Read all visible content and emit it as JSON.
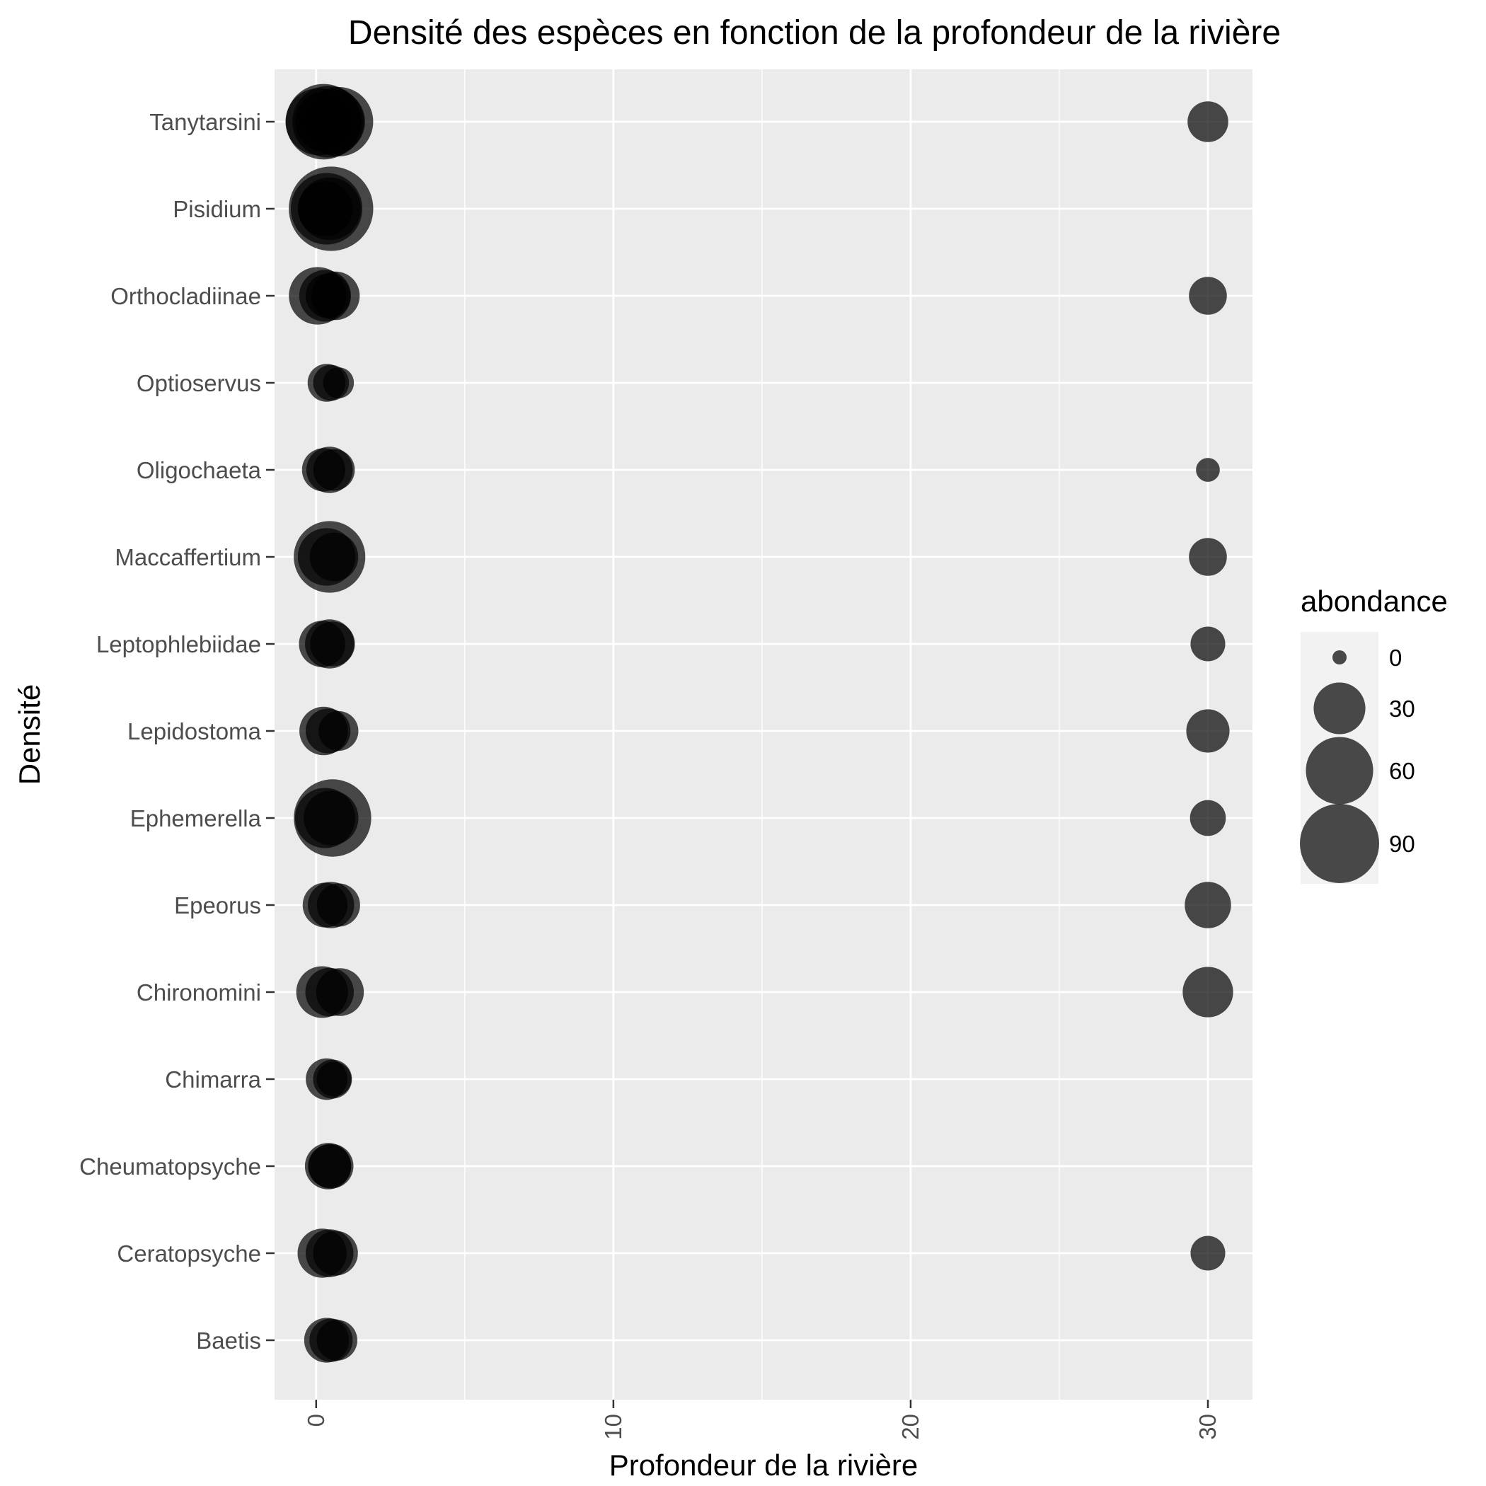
{
  "chart_data": {
    "type": "scatter",
    "title": "Densité des espèces en fonction de la profondeur de la rivière",
    "xlabel": "Profondeur de la rivière",
    "ylabel": "Densité",
    "xlim": [
      -1.4,
      31.5
    ],
    "x_ticks": [
      "0",
      "10",
      "20",
      "30"
    ],
    "x_tick_values": [
      0,
      10,
      20,
      30
    ],
    "categories": [
      "Tanytarsini",
      "Pisidium",
      "Orthocladiinae",
      "Optioservus",
      "Oligochaeta",
      "Maccaffertium",
      "Leptophlebiidae",
      "Lepidostoma",
      "Ephemerella",
      "Epeorus",
      "Chironomini",
      "Chimarra",
      "Cheumatopsyche",
      "Ceratopsyche",
      "Baetis"
    ],
    "grid": true,
    "panel_background": "#ebebeb",
    "point_color": "#000000",
    "point_opacity": 0.7,
    "size_legend": {
      "title": "abondance",
      "values": [
        0,
        30,
        60,
        90
      ],
      "labels": [
        "0",
        "30",
        "60",
        "90"
      ],
      "placement": "right"
    },
    "points": [
      {
        "species": "Tanytarsini",
        "x": 0.1,
        "abondance": 60
      },
      {
        "species": "Tanytarsini",
        "x": 0.25,
        "abondance": 80
      },
      {
        "species": "Tanytarsini",
        "x": 0.4,
        "abondance": 70
      },
      {
        "species": "Tanytarsini",
        "x": 0.55,
        "abondance": 55
      },
      {
        "species": "Tanytarsini",
        "x": 0.75,
        "abondance": 65
      },
      {
        "species": "Tanytarsini",
        "x": 0.3,
        "abondance": 45
      },
      {
        "species": "Tanytarsini",
        "x": 30,
        "abondance": 15
      },
      {
        "species": "Pisidium",
        "x": 0.5,
        "abondance": 105
      },
      {
        "species": "Pisidium",
        "x": 0.35,
        "abondance": 70
      },
      {
        "species": "Pisidium",
        "x": 0.45,
        "abondance": 50
      },
      {
        "species": "Pisidium",
        "x": 0.3,
        "abondance": 35
      },
      {
        "species": "Orthocladiinae",
        "x": 0.05,
        "abondance": 40
      },
      {
        "species": "Orthocladiinae",
        "x": 0.3,
        "abondance": 30
      },
      {
        "species": "Orthocladiinae",
        "x": 0.65,
        "abondance": 25
      },
      {
        "species": "Orthocladiinae",
        "x": 0.4,
        "abondance": 20
      },
      {
        "species": "Orthocladiinae",
        "x": 30,
        "abondance": 12
      },
      {
        "species": "Optioservus",
        "x": 0.35,
        "abondance": 12
      },
      {
        "species": "Optioservus",
        "x": 0.5,
        "abondance": 10
      },
      {
        "species": "Optioservus",
        "x": 0.75,
        "abondance": 6
      },
      {
        "species": "Oligochaeta",
        "x": 0.25,
        "abondance": 18
      },
      {
        "species": "Oligochaeta",
        "x": 0.45,
        "abondance": 22
      },
      {
        "species": "Oligochaeta",
        "x": 0.6,
        "abondance": 16
      },
      {
        "species": "Oligochaeta",
        "x": 30,
        "abondance": 2
      },
      {
        "species": "Maccaffertium",
        "x": 0.45,
        "abondance": 70
      },
      {
        "species": "Maccaffertium",
        "x": 0.35,
        "abondance": 40
      },
      {
        "species": "Maccaffertium",
        "x": 0.6,
        "abondance": 25
      },
      {
        "species": "Maccaffertium",
        "x": 30,
        "abondance": 12
      },
      {
        "species": "Leptophlebiidae",
        "x": 0.2,
        "abondance": 22
      },
      {
        "species": "Leptophlebiidae",
        "x": 0.45,
        "abondance": 26
      },
      {
        "species": "Leptophlebiidae",
        "x": 0.55,
        "abondance": 20
      },
      {
        "species": "Leptophlebiidae",
        "x": 30,
        "abondance": 9
      },
      {
        "species": "Lepidostoma",
        "x": 0.25,
        "abondance": 25
      },
      {
        "species": "Lepidostoma",
        "x": 0.4,
        "abondance": 20
      },
      {
        "species": "Lepidostoma",
        "x": 0.75,
        "abondance": 14
      },
      {
        "species": "Lepidostoma",
        "x": 30,
        "abondance": 18
      },
      {
        "species": "Ephemerella",
        "x": 0.55,
        "abondance": 85
      },
      {
        "species": "Ephemerella",
        "x": 0.3,
        "abondance": 45
      },
      {
        "species": "Ephemerella",
        "x": 0.5,
        "abondance": 35
      },
      {
        "species": "Ephemerella",
        "x": 30,
        "abondance": 10
      },
      {
        "species": "Epeorus",
        "x": 0.3,
        "abondance": 20
      },
      {
        "species": "Epeorus",
        "x": 0.5,
        "abondance": 22
      },
      {
        "species": "Epeorus",
        "x": 0.75,
        "abondance": 18
      },
      {
        "species": "Epeorus",
        "x": 30,
        "abondance": 22
      },
      {
        "species": "Chironomini",
        "x": 0.2,
        "abondance": 30
      },
      {
        "species": "Chironomini",
        "x": 0.45,
        "abondance": 25
      },
      {
        "species": "Chironomini",
        "x": 0.8,
        "abondance": 24
      },
      {
        "species": "Chironomini",
        "x": 30,
        "abondance": 28
      },
      {
        "species": "Chimarra",
        "x": 0.35,
        "abondance": 16
      },
      {
        "species": "Chimarra",
        "x": 0.55,
        "abondance": 13
      },
      {
        "species": "Chimarra",
        "x": 0.6,
        "abondance": 9
      },
      {
        "species": "Cheumatopsyche",
        "x": 0.4,
        "abondance": 22
      },
      {
        "species": "Cheumatopsyche",
        "x": 0.5,
        "abondance": 20
      },
      {
        "species": "Cheumatopsyche",
        "x": 0.45,
        "abondance": 18
      },
      {
        "species": "Ceratopsyche",
        "x": 0.2,
        "abondance": 26
      },
      {
        "species": "Ceratopsyche",
        "x": 0.45,
        "abondance": 24
      },
      {
        "species": "Ceratopsyche",
        "x": 0.65,
        "abondance": 20
      },
      {
        "species": "Ceratopsyche",
        "x": 30,
        "abondance": 9
      },
      {
        "species": "Baetis",
        "x": 0.35,
        "abondance": 20
      },
      {
        "species": "Baetis",
        "x": 0.5,
        "abondance": 18
      },
      {
        "species": "Baetis",
        "x": 0.7,
        "abondance": 15
      }
    ]
  }
}
